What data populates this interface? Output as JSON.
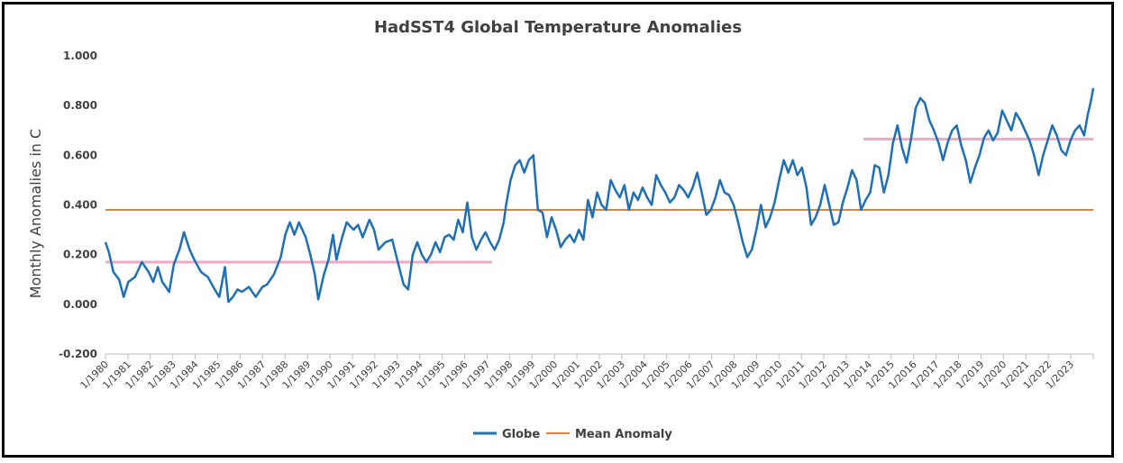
{
  "chart_data": {
    "type": "line",
    "title": "HadSST4 Global Temperature Anomalies",
    "xlabel": "",
    "ylabel": "Monthly Anomalies in C",
    "ylim": [
      -0.2,
      1.0
    ],
    "yticks": [
      "-0.200",
      "0.000",
      "0.200",
      "0.400",
      "0.600",
      "0.800",
      "1.000"
    ],
    "grid": false,
    "legend_position": "bottom",
    "x_start": "1/1980",
    "x_end": "4/2023",
    "categories": [
      "1/1980",
      "1/1981",
      "1/1982",
      "1/1983",
      "1/1984",
      "1/1985",
      "1/1986",
      "1/1987",
      "1/1988",
      "1/1989",
      "1/1990",
      "1/1991",
      "1/1992",
      "1/1993",
      "1/1994",
      "1/1995",
      "1/1996",
      "1/1997",
      "1/1998",
      "1/1999",
      "1/2000",
      "1/2001",
      "1/2002",
      "1/2003",
      "1/2004",
      "1/2005",
      "1/2006",
      "1/2007",
      "1/2008",
      "1/2009",
      "1/2010",
      "1/2011",
      "1/2012",
      "1/2013",
      "1/2014",
      "1/2015",
      "1/2016",
      "1/2017",
      "1/2018",
      "1/2019",
      "1/2020",
      "1/2021",
      "1/2022",
      "1/2023"
    ],
    "globe_series": {
      "name": "Globe",
      "color": "#1f6fb5",
      "note": "approximate monthly values read from chart; points listed as [decimal year, anomaly C]",
      "points": [
        [
          1980.0,
          0.25
        ],
        [
          1980.15,
          0.21
        ],
        [
          1980.35,
          0.13
        ],
        [
          1980.6,
          0.1
        ],
        [
          1980.8,
          0.03
        ],
        [
          1981.0,
          0.09
        ],
        [
          1981.3,
          0.11
        ],
        [
          1981.6,
          0.17
        ],
        [
          1981.9,
          0.13
        ],
        [
          1982.1,
          0.09
        ],
        [
          1982.3,
          0.15
        ],
        [
          1982.5,
          0.09
        ],
        [
          1982.8,
          0.05
        ],
        [
          1983.0,
          0.16
        ],
        [
          1983.25,
          0.22
        ],
        [
          1983.45,
          0.29
        ],
        [
          1983.7,
          0.22
        ],
        [
          1983.9,
          0.18
        ],
        [
          1984.2,
          0.13
        ],
        [
          1984.5,
          0.11
        ],
        [
          1984.8,
          0.06
        ],
        [
          1985.0,
          0.03
        ],
        [
          1985.25,
          0.15
        ],
        [
          1985.4,
          0.01
        ],
        [
          1985.6,
          0.03
        ],
        [
          1985.8,
          0.06
        ],
        [
          1986.0,
          0.05
        ],
        [
          1986.3,
          0.07
        ],
        [
          1986.6,
          0.03
        ],
        [
          1986.9,
          0.07
        ],
        [
          1987.1,
          0.08
        ],
        [
          1987.4,
          0.12
        ],
        [
          1987.7,
          0.19
        ],
        [
          1987.9,
          0.28
        ],
        [
          1988.1,
          0.33
        ],
        [
          1988.3,
          0.28
        ],
        [
          1988.5,
          0.33
        ],
        [
          1988.8,
          0.27
        ],
        [
          1989.0,
          0.2
        ],
        [
          1989.2,
          0.12
        ],
        [
          1989.35,
          0.02
        ],
        [
          1989.6,
          0.12
        ],
        [
          1989.8,
          0.18
        ],
        [
          1990.0,
          0.28
        ],
        [
          1990.15,
          0.18
        ],
        [
          1990.4,
          0.27
        ],
        [
          1990.6,
          0.33
        ],
        [
          1990.9,
          0.3
        ],
        [
          1991.1,
          0.32
        ],
        [
          1991.3,
          0.27
        ],
        [
          1991.6,
          0.34
        ],
        [
          1991.8,
          0.3
        ],
        [
          1992.0,
          0.22
        ],
        [
          1992.3,
          0.25
        ],
        [
          1992.6,
          0.26
        ],
        [
          1992.9,
          0.15
        ],
        [
          1993.1,
          0.08
        ],
        [
          1993.3,
          0.06
        ],
        [
          1993.5,
          0.2
        ],
        [
          1993.7,
          0.25
        ],
        [
          1993.9,
          0.2
        ],
        [
          1994.1,
          0.17
        ],
        [
          1994.3,
          0.2
        ],
        [
          1994.5,
          0.25
        ],
        [
          1994.7,
          0.21
        ],
        [
          1994.9,
          0.27
        ],
        [
          1995.1,
          0.28
        ],
        [
          1995.3,
          0.26
        ],
        [
          1995.5,
          0.34
        ],
        [
          1995.7,
          0.29
        ],
        [
          1995.9,
          0.41
        ],
        [
          1996.1,
          0.27
        ],
        [
          1996.3,
          0.22
        ],
        [
          1996.5,
          0.26
        ],
        [
          1996.7,
          0.29
        ],
        [
          1996.9,
          0.25
        ],
        [
          1997.1,
          0.22
        ],
        [
          1997.3,
          0.26
        ],
        [
          1997.5,
          0.33
        ],
        [
          1997.6,
          0.4
        ],
        [
          1997.8,
          0.5
        ],
        [
          1998.0,
          0.56
        ],
        [
          1998.2,
          0.58
        ],
        [
          1998.4,
          0.53
        ],
        [
          1998.6,
          0.58
        ],
        [
          1998.8,
          0.6
        ],
        [
          1999.0,
          0.38
        ],
        [
          1999.2,
          0.37
        ],
        [
          1999.4,
          0.27
        ],
        [
          1999.6,
          0.35
        ],
        [
          1999.8,
          0.3
        ],
        [
          2000.0,
          0.23
        ],
        [
          2000.2,
          0.26
        ],
        [
          2000.4,
          0.28
        ],
        [
          2000.6,
          0.25
        ],
        [
          2000.8,
          0.3
        ],
        [
          2001.0,
          0.26
        ],
        [
          2001.2,
          0.42
        ],
        [
          2001.4,
          0.35
        ],
        [
          2001.6,
          0.45
        ],
        [
          2001.8,
          0.4
        ],
        [
          2002.0,
          0.38
        ],
        [
          2002.2,
          0.5
        ],
        [
          2002.4,
          0.46
        ],
        [
          2002.6,
          0.43
        ],
        [
          2002.8,
          0.48
        ],
        [
          2003.0,
          0.38
        ],
        [
          2003.2,
          0.45
        ],
        [
          2003.4,
          0.42
        ],
        [
          2003.6,
          0.47
        ],
        [
          2003.8,
          0.43
        ],
        [
          2004.0,
          0.4
        ],
        [
          2004.2,
          0.52
        ],
        [
          2004.4,
          0.48
        ],
        [
          2004.6,
          0.45
        ],
        [
          2004.8,
          0.41
        ],
        [
          2005.0,
          0.43
        ],
        [
          2005.2,
          0.48
        ],
        [
          2005.4,
          0.46
        ],
        [
          2005.6,
          0.43
        ],
        [
          2005.8,
          0.47
        ],
        [
          2006.0,
          0.53
        ],
        [
          2006.2,
          0.45
        ],
        [
          2006.4,
          0.36
        ],
        [
          2006.6,
          0.38
        ],
        [
          2006.8,
          0.43
        ],
        [
          2007.0,
          0.5
        ],
        [
          2007.2,
          0.45
        ],
        [
          2007.4,
          0.44
        ],
        [
          2007.6,
          0.4
        ],
        [
          2007.8,
          0.33
        ],
        [
          2008.0,
          0.25
        ],
        [
          2008.2,
          0.19
        ],
        [
          2008.4,
          0.22
        ],
        [
          2008.6,
          0.3
        ],
        [
          2008.8,
          0.4
        ],
        [
          2009.0,
          0.31
        ],
        [
          2009.2,
          0.35
        ],
        [
          2009.4,
          0.41
        ],
        [
          2009.6,
          0.5
        ],
        [
          2009.8,
          0.58
        ],
        [
          2010.0,
          0.53
        ],
        [
          2010.2,
          0.58
        ],
        [
          2010.4,
          0.52
        ],
        [
          2010.6,
          0.55
        ],
        [
          2010.8,
          0.47
        ],
        [
          2011.0,
          0.32
        ],
        [
          2011.2,
          0.35
        ],
        [
          2011.4,
          0.4
        ],
        [
          2011.6,
          0.48
        ],
        [
          2011.8,
          0.4
        ],
        [
          2012.0,
          0.32
        ],
        [
          2012.2,
          0.33
        ],
        [
          2012.4,
          0.41
        ],
        [
          2012.6,
          0.47
        ],
        [
          2012.8,
          0.54
        ],
        [
          2013.0,
          0.5
        ],
        [
          2013.2,
          0.38
        ],
        [
          2013.4,
          0.42
        ],
        [
          2013.6,
          0.45
        ],
        [
          2013.8,
          0.56
        ],
        [
          2014.0,
          0.55
        ],
        [
          2014.2,
          0.45
        ],
        [
          2014.4,
          0.52
        ],
        [
          2014.6,
          0.65
        ],
        [
          2014.8,
          0.72
        ],
        [
          2015.0,
          0.63
        ],
        [
          2015.2,
          0.57
        ],
        [
          2015.4,
          0.67
        ],
        [
          2015.6,
          0.79
        ],
        [
          2015.8,
          0.83
        ],
        [
          2016.0,
          0.81
        ],
        [
          2016.2,
          0.74
        ],
        [
          2016.4,
          0.7
        ],
        [
          2016.6,
          0.65
        ],
        [
          2016.8,
          0.58
        ],
        [
          2017.0,
          0.65
        ],
        [
          2017.2,
          0.7
        ],
        [
          2017.4,
          0.72
        ],
        [
          2017.6,
          0.64
        ],
        [
          2017.8,
          0.58
        ],
        [
          2018.0,
          0.49
        ],
        [
          2018.2,
          0.55
        ],
        [
          2018.4,
          0.6
        ],
        [
          2018.6,
          0.67
        ],
        [
          2018.8,
          0.7
        ],
        [
          2019.0,
          0.66
        ],
        [
          2019.2,
          0.69
        ],
        [
          2019.4,
          0.78
        ],
        [
          2019.6,
          0.74
        ],
        [
          2019.8,
          0.7
        ],
        [
          2020.0,
          0.77
        ],
        [
          2020.2,
          0.74
        ],
        [
          2020.4,
          0.7
        ],
        [
          2020.6,
          0.66
        ],
        [
          2020.8,
          0.6
        ],
        [
          2021.0,
          0.52
        ],
        [
          2021.2,
          0.6
        ],
        [
          2021.4,
          0.66
        ],
        [
          2021.6,
          0.72
        ],
        [
          2021.8,
          0.68
        ],
        [
          2022.0,
          0.62
        ],
        [
          2022.2,
          0.6
        ],
        [
          2022.4,
          0.66
        ],
        [
          2022.6,
          0.7
        ],
        [
          2022.8,
          0.72
        ],
        [
          2023.0,
          0.68
        ],
        [
          2023.15,
          0.76
        ],
        [
          2023.3,
          0.82
        ],
        [
          2023.4,
          0.87
        ]
      ]
    },
    "mean_anomaly": {
      "name": "Mean Anomaly",
      "color": "#ed7d31",
      "value": 0.38
    },
    "period_means": [
      {
        "from": 1980.0,
        "to": 1997.0,
        "value": 0.17,
        "color": "#f4a6c8"
      },
      {
        "from": 2013.3,
        "to": 2023.4,
        "value": 0.665,
        "color": "#f4a6c8"
      }
    ],
    "legend": [
      "Globe",
      "Mean Anomaly"
    ]
  }
}
